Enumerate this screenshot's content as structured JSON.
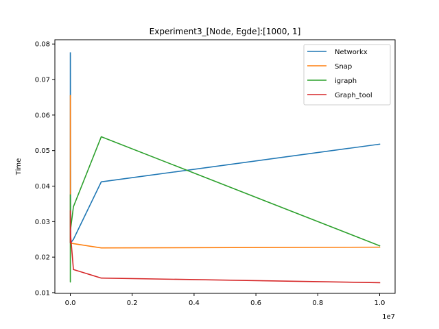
{
  "chart_data": {
    "type": "line",
    "title": "Experiment3_[Node, Egde]:[1000, 1]",
    "xlabel": "",
    "ylabel": "Time",
    "x_offset_label": "1e7",
    "xlim": [
      -500000,
      10500000
    ],
    "ylim": [
      0.0098,
      0.0812
    ],
    "x_ticks": [
      0,
      2000000,
      4000000,
      6000000,
      8000000,
      10000000
    ],
    "x_tick_labels": [
      "0.0",
      "0.2",
      "0.4",
      "0.6",
      "0.8",
      "1.0"
    ],
    "y_ticks": [
      0.01,
      0.02,
      0.03,
      0.04,
      0.05,
      0.06,
      0.07,
      0.08
    ],
    "y_tick_labels": [
      "0.01",
      "0.02",
      "0.03",
      "0.04",
      "0.05",
      "0.06",
      "0.07",
      "0.08"
    ],
    "grid": false,
    "legend_position": "top-right",
    "x": [
      10,
      100,
      1000,
      10000,
      100000,
      1000000,
      10000000
    ],
    "series": [
      {
        "name": "Networkx",
        "color": "#1f77b4",
        "values": [
          0.0775,
          0.024,
          0.077,
          0.024,
          0.025,
          0.0412,
          0.0518
        ]
      },
      {
        "name": "Snap",
        "color": "#ff7f0e",
        "values": [
          0.042,
          0.0655,
          0.0242,
          0.024,
          0.0238,
          0.0226,
          0.0228
        ]
      },
      {
        "name": "igraph",
        "color": "#2ca02c",
        "values": [
          0.0375,
          0.013,
          0.033,
          0.028,
          0.0342,
          0.0539,
          0.0232
        ]
      },
      {
        "name": "Graph_tool",
        "color": "#d62728",
        "values": [
          0.033,
          0.024,
          0.03,
          0.026,
          0.0165,
          0.0141,
          0.0128
        ]
      }
    ]
  }
}
